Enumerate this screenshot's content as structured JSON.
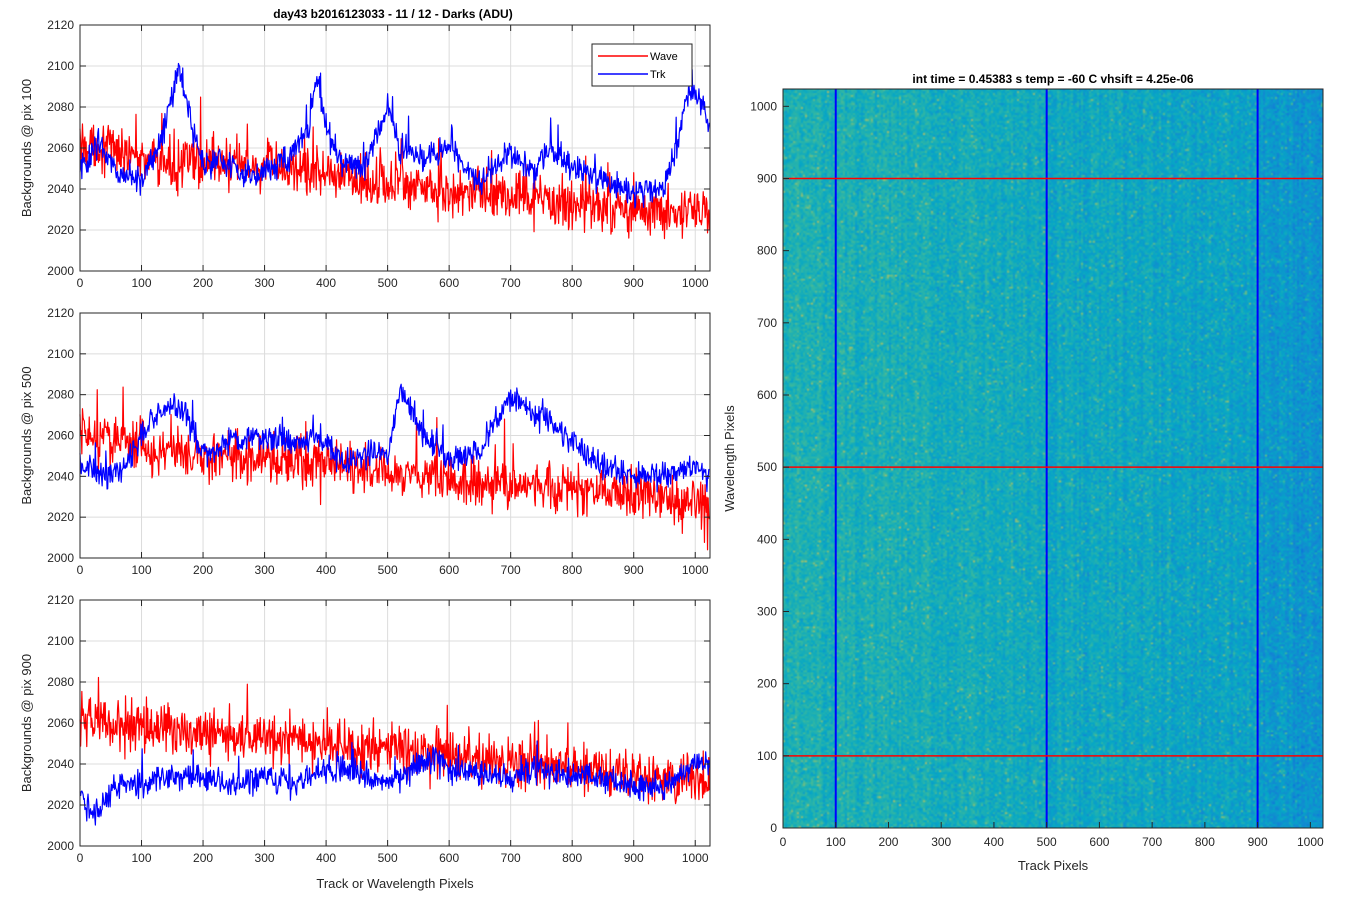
{
  "figure_title": "day43 b2016123033 - 11 / 12 - Darks (ADU)",
  "chart_data": [
    {
      "type": "line",
      "title": "day43 b2016123033 - 11 / 12 - Darks (ADU)",
      "xlabel": "",
      "ylabel": "Backgrounds @ pix 100",
      "xlim": [
        0,
        1024
      ],
      "ylim": [
        2000,
        2120
      ],
      "xticks": [
        0,
        100,
        200,
        300,
        400,
        500,
        600,
        700,
        800,
        900,
        1000
      ],
      "yticks": [
        2000,
        2020,
        2040,
        2060,
        2080,
        2100,
        2120
      ],
      "grid": true,
      "legend": "top-right",
      "series": [
        {
          "name": "Wave",
          "color": "#ff0000",
          "x": [
            0,
            50,
            100,
            150,
            200,
            250,
            300,
            350,
            400,
            450,
            500,
            550,
            600,
            650,
            700,
            750,
            800,
            850,
            900,
            950,
            1000,
            1024
          ],
          "values": [
            2062,
            2060,
            2055,
            2052,
            2054,
            2052,
            2050,
            2050,
            2047,
            2045,
            2043,
            2042,
            2038,
            2038,
            2036,
            2034,
            2033,
            2032,
            2030,
            2029,
            2028,
            2027
          ],
          "noise": 9
        },
        {
          "name": "Trk",
          "color": "#0000ff",
          "x": [
            0,
            30,
            60,
            100,
            130,
            150,
            160,
            175,
            200,
            230,
            270,
            300,
            330,
            370,
            385,
            400,
            420,
            460,
            480,
            500,
            520,
            560,
            600,
            650,
            700,
            740,
            760,
            800,
            850,
            900,
            950,
            970,
            990,
            1010,
            1024
          ],
          "values": [
            2050,
            2062,
            2048,
            2045,
            2062,
            2085,
            2098,
            2080,
            2050,
            2055,
            2045,
            2050,
            2052,
            2068,
            2095,
            2070,
            2055,
            2050,
            2065,
            2080,
            2060,
            2055,
            2060,
            2042,
            2058,
            2048,
            2060,
            2050,
            2045,
            2038,
            2040,
            2062,
            2088,
            2082,
            2070
          ],
          "noise": 5
        }
      ]
    },
    {
      "type": "line",
      "xlabel": "",
      "ylabel": "Backgrounds @ pix 500",
      "xlim": [
        0,
        1024
      ],
      "ylim": [
        2000,
        2120
      ],
      "xticks": [
        0,
        100,
        200,
        300,
        400,
        500,
        600,
        700,
        800,
        900,
        1000
      ],
      "yticks": [
        2000,
        2020,
        2040,
        2060,
        2080,
        2100,
        2120
      ],
      "grid": true,
      "series": [
        {
          "name": "Wave",
          "color": "#ff0000",
          "x": [
            0,
            50,
            100,
            150,
            200,
            250,
            300,
            350,
            400,
            450,
            500,
            550,
            600,
            650,
            700,
            750,
            800,
            850,
            900,
            950,
            1000,
            1024
          ],
          "values": [
            2060,
            2058,
            2055,
            2052,
            2050,
            2050,
            2048,
            2046,
            2045,
            2043,
            2042,
            2040,
            2038,
            2037,
            2036,
            2035,
            2034,
            2032,
            2030,
            2030,
            2026,
            2025
          ],
          "noise": 9
        },
        {
          "name": "Trk",
          "color": "#0000ff",
          "x": [
            0,
            40,
            80,
            110,
            130,
            150,
            170,
            200,
            250,
            300,
            350,
            380,
            400,
            430,
            460,
            500,
            520,
            530,
            560,
            600,
            650,
            690,
            710,
            740,
            770,
            800,
            850,
            900,
            950,
            1000,
            1024
          ],
          "values": [
            2045,
            2040,
            2048,
            2065,
            2072,
            2075,
            2072,
            2050,
            2058,
            2060,
            2055,
            2060,
            2055,
            2045,
            2050,
            2052,
            2080,
            2078,
            2060,
            2048,
            2052,
            2075,
            2078,
            2070,
            2065,
            2058,
            2045,
            2040,
            2040,
            2045,
            2040
          ],
          "noise": 5
        }
      ]
    },
    {
      "type": "line",
      "xlabel": "Track or Wavelength Pixels",
      "ylabel": "Backgrounds @ pix 900",
      "xlim": [
        0,
        1024
      ],
      "ylim": [
        2000,
        2120
      ],
      "xticks": [
        0,
        100,
        200,
        300,
        400,
        500,
        600,
        700,
        800,
        900,
        1000
      ],
      "yticks": [
        2000,
        2020,
        2040,
        2060,
        2080,
        2100,
        2120
      ],
      "grid": true,
      "series": [
        {
          "name": "Wave",
          "color": "#ff0000",
          "x": [
            0,
            50,
            100,
            150,
            200,
            250,
            300,
            350,
            400,
            450,
            500,
            550,
            600,
            650,
            700,
            750,
            800,
            850,
            900,
            950,
            1000,
            1024
          ],
          "values": [
            2060,
            2060,
            2058,
            2057,
            2055,
            2054,
            2052,
            2052,
            2050,
            2048,
            2048,
            2045,
            2044,
            2042,
            2040,
            2040,
            2038,
            2037,
            2035,
            2033,
            2032,
            2030
          ],
          "noise": 9
        },
        {
          "name": "Trk",
          "color": "#0000ff",
          "x": [
            0,
            20,
            40,
            70,
            100,
            150,
            200,
            250,
            300,
            350,
            400,
            450,
            500,
            550,
            580,
            600,
            650,
            700,
            750,
            800,
            850,
            900,
            950,
            980,
            1000,
            1024
          ],
          "values": [
            2025,
            2015,
            2022,
            2032,
            2030,
            2034,
            2033,
            2030,
            2034,
            2030,
            2038,
            2035,
            2030,
            2040,
            2045,
            2038,
            2035,
            2033,
            2038,
            2035,
            2032,
            2030,
            2028,
            2035,
            2042,
            2040
          ],
          "noise": 5
        }
      ]
    },
    {
      "type": "heatmap",
      "title": "int time = 0.45383 s    temp = -60 C    vhsift = 4.25e-06",
      "xlabel": "Track Pixels",
      "ylabel": "Wavelength Pixels",
      "xlim": [
        0,
        1024
      ],
      "ylim": [
        0,
        1024
      ],
      "xticks": [
        0,
        100,
        200,
        300,
        400,
        500,
        600,
        700,
        800,
        900,
        1000
      ],
      "yticks": [
        0,
        100,
        200,
        300,
        400,
        500,
        600,
        700,
        800,
        900,
        1000
      ],
      "colormap": "parula",
      "vertical_markers": [
        100,
        500,
        900
      ],
      "vertical_marker_color": "#0000ff",
      "horizontal_markers": [
        100,
        500,
        900
      ],
      "horizontal_marker_color": "#ff0000"
    }
  ]
}
